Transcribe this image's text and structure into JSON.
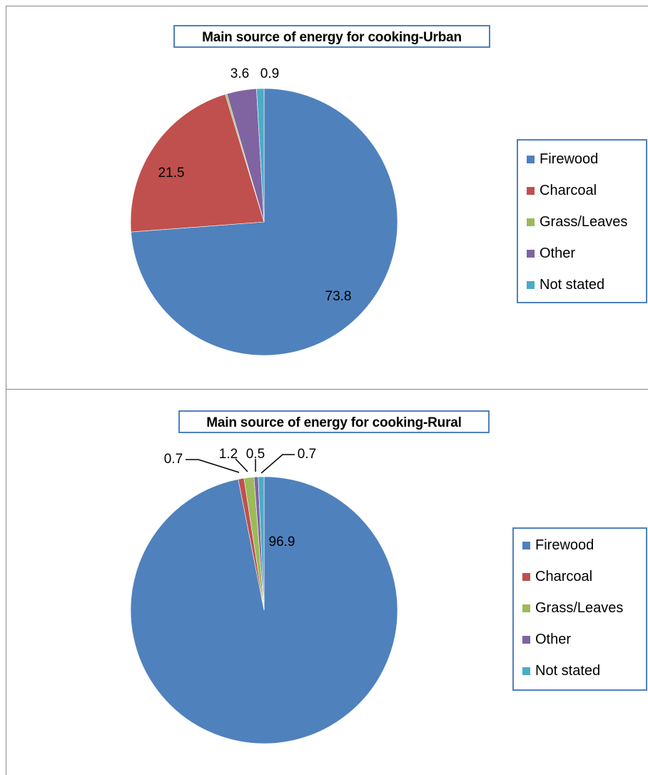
{
  "chart_data": [
    {
      "type": "pie",
      "title": "Main source of energy for cooking-Urban",
      "categories": [
        "Firewood",
        "Charcoal",
        "Grass/Leaves",
        "Other",
        "Not stated"
      ],
      "values": [
        73.8,
        21.5,
        0.2,
        3.6,
        0.9
      ],
      "data_labels": [
        "73.8",
        "21.5",
        "",
        "3.6",
        "0.9"
      ],
      "colors": [
        "#4f81bd",
        "#c0504d",
        "#9bbb59",
        "#8064a2",
        "#4bacc6"
      ],
      "legend": {
        "position": "right",
        "entries": [
          "Firewood",
          "Charcoal",
          "Grass/Leaves",
          "Other",
          "Not stated"
        ]
      }
    },
    {
      "type": "pie",
      "title": "Main source of energy for cooking-Rural",
      "categories": [
        "Firewood",
        "Charcoal",
        "Grass/Leaves",
        "Other",
        "Not stated"
      ],
      "values": [
        96.9,
        0.7,
        1.2,
        0.5,
        0.7
      ],
      "data_labels": [
        "96.9",
        "0.7",
        "1.2",
        "0.5",
        "0.7"
      ],
      "colors": [
        "#4f81bd",
        "#c0504d",
        "#9bbb59",
        "#8064a2",
        "#4bacc6"
      ],
      "legend": {
        "position": "right",
        "entries": [
          "Firewood",
          "Charcoal",
          "Grass/Leaves",
          "Other",
          "Not stated"
        ]
      }
    }
  ]
}
